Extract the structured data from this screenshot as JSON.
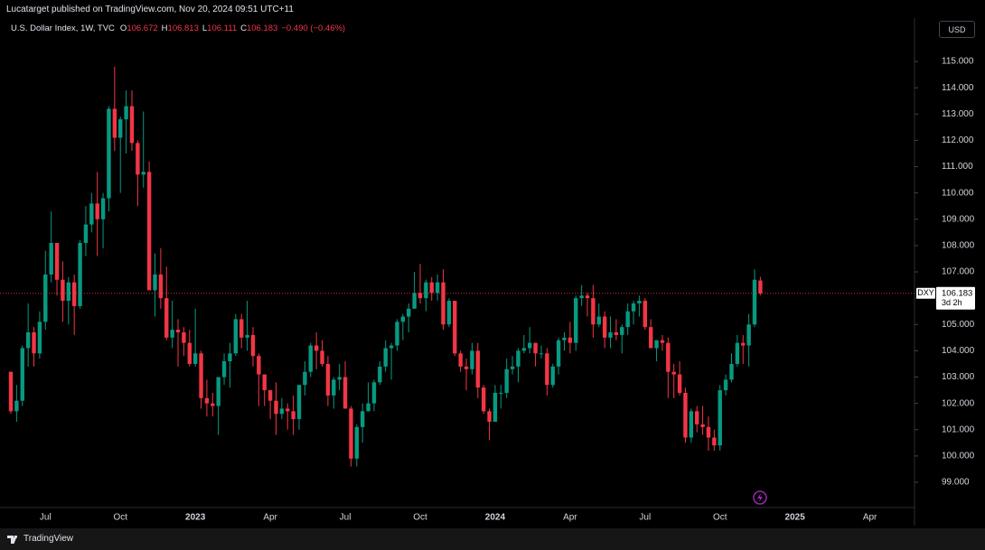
{
  "header": {
    "publisher": "Lucatarget published on TradingView.com, Nov 20, 2024 09:51 UTC+11",
    "currency": "USD",
    "brand": "TradingView"
  },
  "chart_data": {
    "type": "candlestick",
    "legend": {
      "symbol": "U.S. Dollar Index, 1W, TVC",
      "fields": [
        "O",
        "H",
        "L",
        "C"
      ],
      "change": "−0.490 (−0.46%)"
    },
    "countdown": "3d 2h",
    "categories": [
      null,
      null,
      null,
      null,
      null,
      null,
      "Jul",
      null,
      null,
      null,
      null,
      null,
      null,
      null,
      null,
      null,
      null,
      null,
      null,
      "Oct",
      null,
      null,
      null,
      null,
      null,
      null,
      null,
      null,
      null,
      null,
      null,
      null,
      "2023",
      null,
      null,
      null,
      null,
      null,
      null,
      null,
      null,
      null,
      null,
      null,
      null,
      "Apr",
      null,
      null,
      null,
      null,
      null,
      null,
      null,
      null,
      null,
      null,
      null,
      null,
      "Jul",
      null,
      null,
      null,
      null,
      null,
      null,
      null,
      null,
      null,
      null,
      null,
      null,
      "Oct",
      null,
      null,
      null,
      null,
      null,
      null,
      null,
      null,
      null,
      null,
      null,
      null,
      "2024",
      null,
      null,
      null,
      null,
      null,
      null,
      null,
      null,
      null,
      null,
      null,
      null,
      "Apr",
      null,
      null,
      null,
      null,
      null,
      null,
      null,
      null,
      null,
      null,
      null,
      null,
      "Jul",
      null,
      null,
      null,
      null,
      null,
      null,
      null,
      null,
      null,
      null,
      null,
      null,
      "Oct",
      null,
      null,
      null,
      null,
      null,
      null,
      null,
      null,
      null,
      null,
      null,
      null,
      "2025",
      null,
      null,
      null,
      null,
      null,
      null,
      null,
      null,
      null,
      null,
      null,
      null,
      "Apr",
      null,
      null
    ],
    "series": [
      {
        "name": "DXY",
        "up_color": "#089981",
        "down_color": "#f23645",
        "open": [
          103.2,
          101.7,
          102.1,
          104.1,
          104.7,
          103.9,
          105.1,
          106.9,
          108.1,
          106.7,
          105.9,
          106.6,
          105.7,
          108.1,
          108.8,
          109.6,
          109.0,
          109.8,
          113.2,
          112.1,
          112.8,
          113.3,
          111.9,
          110.7,
          110.8,
          106.3,
          106.9,
          106.0,
          104.5,
          104.8,
          104.7,
          104.3,
          103.5,
          103.9,
          102.2,
          102.0,
          101.9,
          103.0,
          103.6,
          103.9,
          105.2,
          104.5,
          104.6,
          103.8,
          103.1,
          102.5,
          102.1,
          101.6,
          101.8,
          101.7,
          101.4,
          102.7,
          103.2,
          104.2,
          104.0,
          103.5,
          102.3,
          102.9,
          103.0,
          101.8,
          99.9,
          101.1,
          101.7,
          102.0,
          102.8,
          103.4,
          104.1,
          104.2,
          105.1,
          105.3,
          105.6,
          106.2,
          106.0,
          106.6,
          106.2,
          106.6,
          105.0,
          105.9,
          103.9,
          103.4,
          103.3,
          104.0,
          102.6,
          101.7,
          101.3,
          102.4,
          102.4,
          103.3,
          103.4,
          104.0,
          104.1,
          104.3,
          103.9,
          103.9,
          102.7,
          103.4,
          104.4,
          104.5,
          104.3,
          106.0,
          106.1,
          106.0,
          105.0,
          105.3,
          104.5,
          104.7,
          104.6,
          104.9,
          105.5,
          105.8,
          105.9,
          104.9,
          104.1,
          104.4,
          104.3,
          103.2,
          103.1,
          102.4,
          100.7,
          101.7,
          101.2,
          101.1,
          100.7,
          100.4,
          102.5,
          102.9,
          103.5,
          104.3,
          104.2,
          105.0,
          106.672,
          null,
          null,
          null,
          null,
          null,
          null,
          null,
          null,
          null,
          null,
          null,
          null,
          null,
          null,
          null,
          null,
          null,
          null,
          null,
          null,
          null
        ],
        "high": [
          103.2,
          102.7,
          104.2,
          105.8,
          104.9,
          105.5,
          107.8,
          109.3,
          108.1,
          107.4,
          106.8,
          106.9,
          108.2,
          109.5,
          110.0,
          110.8,
          110.0,
          113.3,
          114.8,
          112.9,
          113.9,
          113.9,
          112.0,
          113.1,
          111.2,
          107.7,
          107.9,
          107.2,
          105.9,
          105.2,
          104.9,
          104.8,
          105.6,
          104.0,
          102.9,
          102.4,
          103.0,
          103.9,
          104.3,
          105.4,
          105.4,
          105.9,
          104.9,
          103.9,
          103.1,
          102.5,
          102.8,
          102.2,
          102.0,
          102.3,
          102.7,
          103.6,
          104.3,
          104.7,
          104.4,
          103.8,
          103.0,
          103.5,
          103.6,
          101.9,
          101.2,
          102.0,
          102.8,
          102.9,
          103.6,
          104.4,
          104.3,
          105.2,
          105.4,
          105.8,
          107.0,
          107.3,
          106.7,
          106.8,
          106.9,
          107.1,
          106.0,
          105.9,
          104.0,
          103.7,
          104.3,
          104.3,
          102.7,
          101.8,
          102.7,
          102.7,
          103.7,
          103.8,
          104.1,
          104.6,
          104.9,
          104.3,
          104.2,
          104.1,
          103.5,
          104.5,
          104.7,
          105.1,
          106.1,
          106.5,
          106.2,
          106.5,
          105.8,
          105.5,
          105.3,
          105.2,
          105.0,
          105.8,
          105.9,
          106.1,
          106.0,
          105.2,
          104.4,
          104.6,
          104.5,
          103.5,
          103.6,
          102.6,
          101.8,
          101.9,
          101.9,
          101.5,
          101.0,
          102.7,
          103.1,
          103.9,
          104.6,
          104.6,
          105.4,
          107.1,
          106.813,
          null,
          null,
          null,
          null,
          null,
          null,
          null,
          null,
          null,
          null,
          null,
          null,
          null,
          null,
          null,
          null,
          null,
          null,
          null,
          null,
          null
        ],
        "low": [
          101.6,
          101.3,
          101.9,
          103.4,
          103.4,
          103.7,
          104.8,
          106.6,
          106.1,
          105.1,
          105.0,
          104.6,
          105.6,
          107.6,
          108.5,
          107.6,
          107.9,
          109.3,
          111.6,
          110.0,
          111.5,
          111.6,
          109.5,
          110.2,
          106.3,
          105.3,
          105.6,
          104.4,
          104.1,
          103.4,
          103.8,
          103.4,
          103.4,
          101.8,
          101.5,
          101.5,
          100.8,
          102.7,
          102.6,
          103.8,
          104.1,
          104.0,
          103.4,
          101.9,
          101.9,
          101.4,
          100.8,
          101.4,
          101.0,
          100.8,
          101.0,
          102.3,
          103.0,
          103.3,
          103.4,
          101.9,
          101.8,
          102.5,
          101.8,
          99.6,
          99.6,
          100.5,
          101.7,
          101.7,
          102.7,
          103.2,
          102.9,
          104.0,
          104.4,
          104.7,
          105.6,
          105.8,
          105.5,
          105.9,
          105.9,
          104.8,
          104.9,
          103.8,
          103.2,
          102.5,
          103.1,
          102.2,
          101.6,
          100.6,
          101.3,
          101.8,
          102.2,
          103.1,
          102.8,
          103.9,
          103.9,
          103.4,
          103.7,
          102.3,
          102.6,
          103.1,
          104.0,
          103.9,
          104.0,
          105.7,
          105.3,
          104.5,
          104.9,
          104.1,
          104.1,
          104.4,
          103.9,
          104.6,
          105.0,
          105.3,
          104.8,
          104.1,
          103.6,
          104.0,
          102.2,
          102.2,
          102.3,
          100.5,
          100.5,
          100.9,
          100.8,
          100.2,
          100.2,
          100.2,
          102.3,
          102.8,
          103.4,
          103.5,
          103.4,
          104.9,
          106.111,
          null,
          null,
          null,
          null,
          null,
          null,
          null,
          null,
          null,
          null,
          null,
          null,
          null,
          null,
          null,
          null,
          null,
          null,
          null,
          null,
          null
        ],
        "close": [
          101.7,
          102.1,
          104.1,
          104.7,
          103.9,
          105.1,
          106.9,
          108.1,
          106.7,
          105.9,
          106.6,
          105.7,
          108.1,
          108.8,
          109.6,
          109.0,
          109.8,
          113.2,
          112.1,
          112.8,
          113.3,
          111.9,
          110.7,
          110.8,
          106.3,
          106.9,
          106.0,
          104.5,
          104.8,
          104.7,
          104.3,
          103.5,
          103.9,
          102.2,
          102.0,
          101.9,
          103.0,
          103.6,
          103.9,
          105.2,
          104.5,
          104.6,
          103.8,
          103.1,
          102.5,
          102.1,
          101.6,
          101.8,
          101.7,
          101.4,
          102.7,
          103.2,
          104.2,
          104.0,
          103.5,
          102.3,
          102.9,
          103.0,
          101.8,
          99.9,
          101.1,
          101.7,
          102.0,
          102.8,
          103.4,
          104.1,
          104.2,
          105.1,
          105.3,
          105.6,
          106.2,
          106.0,
          106.6,
          106.2,
          106.6,
          105.0,
          105.9,
          103.9,
          103.4,
          103.3,
          104.0,
          102.6,
          101.7,
          101.3,
          102.4,
          102.4,
          103.3,
          103.4,
          104.0,
          104.1,
          104.3,
          103.9,
          103.9,
          102.7,
          103.4,
          104.4,
          104.5,
          104.3,
          106.0,
          106.1,
          106.0,
          105.0,
          105.3,
          104.5,
          104.7,
          104.6,
          104.9,
          105.5,
          105.8,
          105.9,
          104.9,
          104.1,
          104.4,
          104.3,
          103.2,
          103.1,
          102.4,
          100.7,
          101.7,
          101.2,
          101.1,
          100.7,
          100.4,
          102.5,
          102.9,
          103.5,
          104.3,
          104.2,
          105.0,
          106.7,
          106.183,
          null,
          null,
          null,
          null,
          null,
          null,
          null,
          null,
          null,
          null,
          null,
          null,
          null,
          null,
          null,
          null,
          null,
          null,
          null,
          null,
          null
        ]
      }
    ],
    "ylim": [
      97.42,
      116.65
    ],
    "yticks": [
      {
        "value": 99,
        "label": "99.000"
      },
      {
        "value": 100,
        "label": "100.000"
      },
      {
        "value": 101,
        "label": "101.000"
      },
      {
        "value": 102,
        "label": "102.000"
      },
      {
        "value": 103,
        "label": "103.000"
      },
      {
        "value": 104,
        "label": "104.000"
      },
      {
        "value": 105,
        "label": "105.000"
      },
      {
        "value": 106,
        "label": "106.000"
      },
      {
        "value": 107,
        "label": "107.000"
      },
      {
        "value": 108,
        "label": "108.000"
      },
      {
        "value": 109,
        "label": "109.000"
      },
      {
        "value": 110,
        "label": "110.000"
      },
      {
        "value": 111,
        "label": "111.000"
      },
      {
        "value": 112,
        "label": "112.000"
      },
      {
        "value": 113,
        "label": "113.000"
      },
      {
        "value": 114,
        "label": "114.000"
      },
      {
        "value": 115,
        "label": "115.000"
      }
    ],
    "grid": false
  }
}
